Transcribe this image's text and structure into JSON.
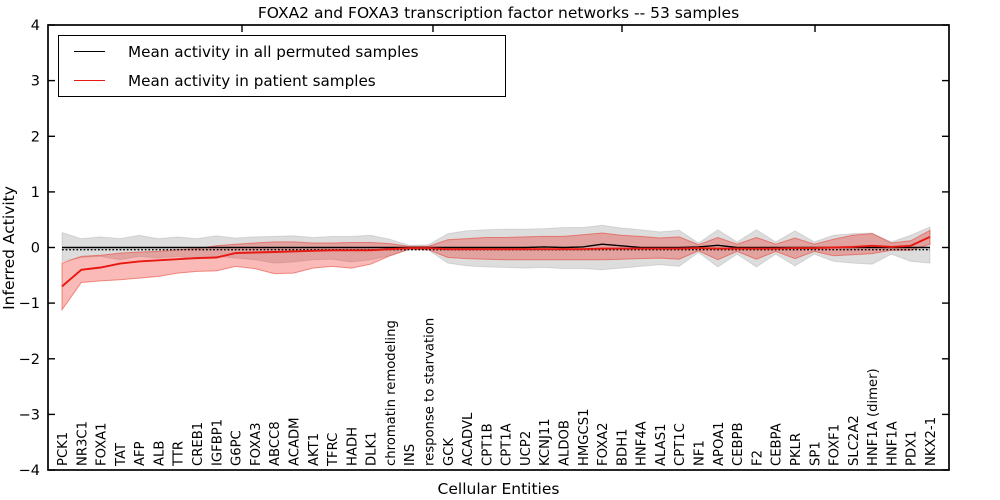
{
  "title": "FOXA2 and FOXA3 transcription factor networks -- 53 samples",
  "legend": {
    "items": [
      {
        "label": "Mean activity in all permuted samples",
        "color": "#000000"
      },
      {
        "label": "Mean activity in patient samples",
        "color": "#e81812"
      }
    ]
  },
  "chart_data": {
    "type": "line",
    "title": "FOXA2 and FOXA3 transcription factor networks -- 53 samples",
    "xlabel": "Cellular Entities",
    "ylabel": "Inferred Activity",
    "ylim": [
      -4,
      4
    ],
    "yticks": [
      4,
      3,
      2,
      1,
      0,
      -1,
      -2,
      -3,
      -4
    ],
    "grid": false,
    "legend_position": "upper left",
    "categories": [
      "PCK1",
      "NR3C1",
      "FOXA1",
      "TAT",
      "AFP",
      "ALB",
      "TTR",
      "CREB1",
      "IGFBP1",
      "G6PC",
      "FOXA3",
      "ABCC8",
      "ACADM",
      "AKT1",
      "TFRC",
      "HADH",
      "DLK1",
      "chromatin remodeling",
      "INS",
      "response to starvation",
      "GCK",
      "ACADVL",
      "CPT1B",
      "CPT1A",
      "UCP2",
      "KCNJ11",
      "ALDOB",
      "HMGCS1",
      "FOXA2",
      "BDH1",
      "HNF4A",
      "ALAS1",
      "CPT1C",
      "NF1",
      "APOA1",
      "CEBPB",
      "F2",
      "CEBPA",
      "PKLR",
      "SP1",
      "FOXF1",
      "SLC2A2",
      "HNF1A (dimer)",
      "HNF1A",
      "PDX1",
      "NKX2-1"
    ],
    "series": [
      {
        "name": "Mean activity in all permuted samples",
        "color": "#000000",
        "line_width": 1.4,
        "band_color": "rgba(0,0,0,0.135)",
        "band_edge": "rgba(0,0,0,0.10)",
        "values": [
          0.0,
          0.0,
          0.0,
          0.0,
          0.0,
          0.0,
          0.0,
          0.0,
          0.0,
          0.0,
          0.0,
          0.0,
          0.0,
          0.0,
          0.0,
          0.0,
          0.0,
          0.0,
          0.0,
          0.0,
          0.0,
          0.0,
          0.0,
          0.0,
          0.0,
          0.01,
          0.0,
          0.01,
          0.06,
          0.03,
          0.0,
          0.0,
          0.0,
          0.01,
          0.04,
          0.0,
          0.0,
          0.0,
          0.0,
          0.0,
          0.0,
          0.0,
          0.0,
          0.0,
          0.0,
          0.0
        ],
        "band_lower": [
          -0.25,
          -0.18,
          -0.16,
          -0.22,
          -0.16,
          -0.19,
          -0.16,
          -0.21,
          -0.16,
          -0.19,
          -0.22,
          -0.28,
          -0.26,
          -0.22,
          -0.21,
          -0.26,
          -0.22,
          -0.15,
          -0.04,
          -0.05,
          -0.28,
          -0.33,
          -0.35,
          -0.36,
          -0.37,
          -0.36,
          -0.38,
          -0.38,
          -0.4,
          -0.37,
          -0.34,
          -0.31,
          -0.34,
          -0.09,
          -0.35,
          -0.12,
          -0.35,
          -0.12,
          -0.33,
          -0.12,
          -0.25,
          -0.28,
          -0.3,
          -0.12,
          -0.25,
          -0.28
        ],
        "band_upper": [
          0.27,
          0.16,
          0.19,
          0.16,
          0.22,
          0.16,
          0.19,
          0.16,
          0.21,
          0.17,
          0.19,
          0.2,
          0.21,
          0.18,
          0.2,
          0.2,
          0.22,
          0.15,
          0.04,
          0.05,
          0.25,
          0.3,
          0.32,
          0.33,
          0.33,
          0.34,
          0.36,
          0.36,
          0.4,
          0.35,
          0.32,
          0.28,
          0.31,
          0.08,
          0.32,
          0.1,
          0.32,
          0.1,
          0.3,
          0.1,
          0.22,
          0.25,
          0.26,
          0.1,
          0.22,
          0.37
        ]
      },
      {
        "name": "Mean activity in patient samples",
        "color": "#e81812",
        "line_width": 1.9,
        "band_color": "rgba(240,30,20,0.30)",
        "band_edge": "rgba(230,60,50,0.55)",
        "values": [
          -0.7,
          -0.4,
          -0.36,
          -0.29,
          -0.25,
          -0.23,
          -0.21,
          -0.19,
          -0.18,
          -0.1,
          -0.09,
          -0.08,
          -0.07,
          -0.06,
          -0.05,
          -0.05,
          -0.05,
          -0.03,
          -0.01,
          -0.01,
          -0.03,
          -0.03,
          -0.03,
          -0.03,
          -0.03,
          -0.03,
          -0.03,
          -0.03,
          -0.02,
          -0.02,
          -0.02,
          -0.02,
          -0.02,
          -0.01,
          -0.02,
          -0.02,
          -0.02,
          -0.02,
          -0.01,
          -0.01,
          0.0,
          0.01,
          0.03,
          0.01,
          0.03,
          0.19
        ],
        "band_lower": [
          -1.12,
          -0.63,
          -0.6,
          -0.58,
          -0.55,
          -0.52,
          -0.46,
          -0.43,
          -0.42,
          -0.34,
          -0.38,
          -0.47,
          -0.46,
          -0.37,
          -0.34,
          -0.37,
          -0.3,
          -0.15,
          -0.03,
          -0.04,
          -0.18,
          -0.2,
          -0.21,
          -0.22,
          -0.22,
          -0.22,
          -0.22,
          -0.22,
          -0.22,
          -0.21,
          -0.2,
          -0.19,
          -0.21,
          -0.06,
          -0.22,
          -0.07,
          -0.21,
          -0.07,
          -0.2,
          -0.07,
          -0.15,
          -0.13,
          -0.11,
          -0.05,
          -0.05,
          0.06
        ],
        "band_upper": [
          -0.28,
          -0.16,
          -0.14,
          -0.1,
          -0.08,
          -0.07,
          -0.04,
          -0.02,
          0.03,
          0.06,
          0.08,
          0.1,
          0.1,
          0.08,
          0.08,
          0.09,
          0.09,
          0.07,
          0.02,
          0.02,
          0.14,
          0.16,
          0.18,
          0.18,
          0.19,
          0.2,
          0.2,
          0.23,
          0.26,
          0.22,
          0.2,
          0.17,
          0.19,
          0.05,
          0.18,
          0.06,
          0.18,
          0.06,
          0.17,
          0.06,
          0.15,
          0.22,
          0.25,
          0.08,
          0.12,
          0.31
        ]
      }
    ]
  }
}
